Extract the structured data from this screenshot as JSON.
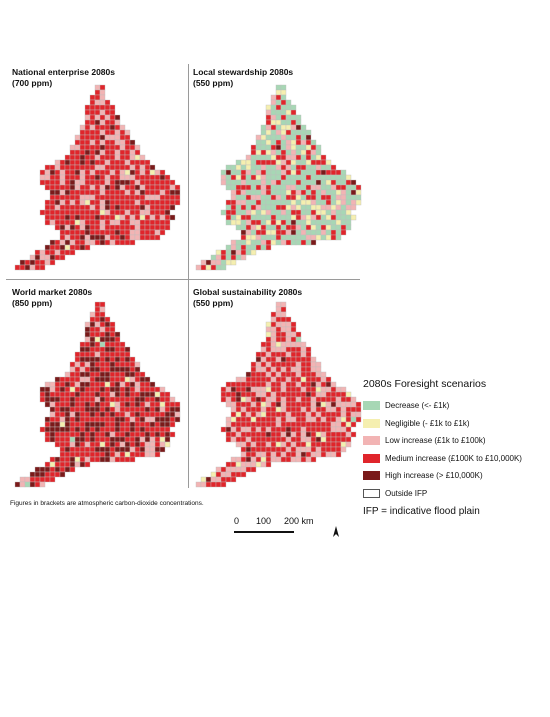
{
  "panels": [
    {
      "title": "National enterprise 2080s",
      "subtitle": "(700 ppm)",
      "mix": [
        0.0,
        0.02,
        0.25,
        0.63,
        0.1
      ],
      "seed": 11
    },
    {
      "title": "Local stewardship 2080s",
      "subtitle": "(550 ppm)",
      "mix": [
        0.45,
        0.15,
        0.12,
        0.25,
        0.03
      ],
      "seed": 23
    },
    {
      "title": "World market 2080s",
      "subtitle": "(850 ppm)",
      "mix": [
        0.01,
        0.02,
        0.1,
        0.55,
        0.32
      ],
      "seed": 37
    },
    {
      "title": "Global sustainability 2080s",
      "subtitle": "(550 ppm)",
      "mix": [
        0.01,
        0.04,
        0.33,
        0.57,
        0.05
      ],
      "seed": 53
    }
  ],
  "legend": {
    "title": "2080s Foresight scenarios",
    "items": [
      {
        "label": "Decrease (<- £1k)",
        "color": "#a7d7b5"
      },
      {
        "label": "Negligible (- £1k to £1k)",
        "color": "#f5efb0"
      },
      {
        "label": "Low increase (£1k to £100k)",
        "color": "#f2b4b4"
      },
      {
        "label": "Medium increase (£100K to £10,000K)",
        "color": "#e0252b"
      },
      {
        "label": "High increase (> £10,000K)",
        "color": "#7a1a1a"
      },
      {
        "label": "Outside IFP",
        "color": "#ffffff"
      }
    ],
    "note": "IFP = indicative flood plain"
  },
  "footnote": "Figures in brackets are atmospheric carbon-dioxide concentrations.",
  "scale": {
    "labels": [
      "0",
      "100",
      "200 km"
    ]
  }
}
